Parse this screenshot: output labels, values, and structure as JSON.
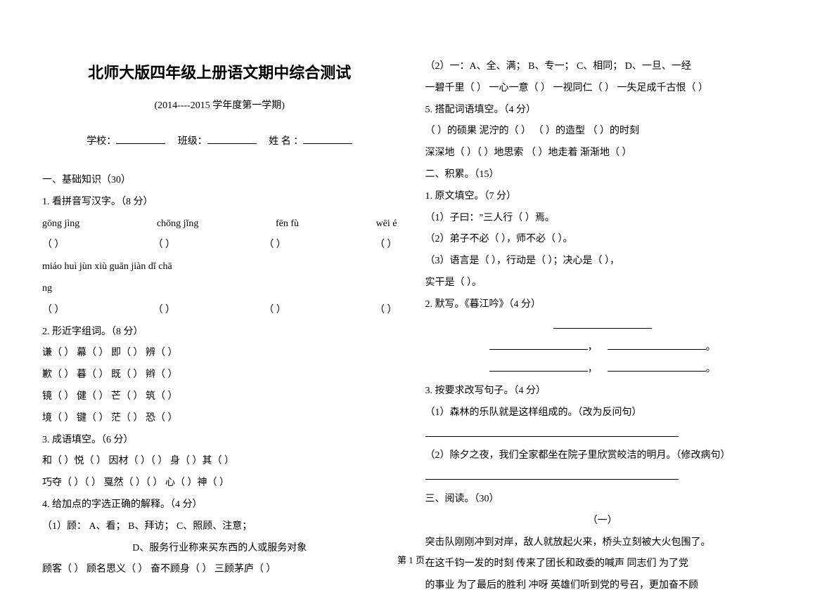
{
  "title": "北师大版四年级上册语文期中综合测试",
  "subtitle": "(2014----2015 学年度第一学期)",
  "info": {
    "school": "学校：",
    "class": "班级：",
    "name": "姓 名 ："
  },
  "left": {
    "s1": "一、基础知识（30）",
    "q1": "1. 看拼音写汉字。（8 分）",
    "pinyin1": [
      "gōng  jìng",
      "chōng   jǐng",
      "fēn    fù",
      "wēi    é"
    ],
    "paren": "（          ）",
    "pinyin2a": "  miáo   huì       jùn   xiù       guān   jiàn        dǐ   chā",
    "pinyin2b": "ng",
    "q2": "2. 形近字组词。（8 分）",
    "xing": [
      "谦（        ）      幕（        ）     即（        ）     辨（        ）",
      "歉（        ）      暮（        ）     既（        ）     辫（        ）",
      "镜（        ）      健（        ）     芒（        ）     筑（        ）",
      "境（        ）      键（        ）     茫（        ）     恐（        ）"
    ],
    "q3": "3. 成语填空。（6 分）",
    "chengyu": [
      "和（     ）悦（     ）      因材（     ）（     ）      身（     ）其（     ）",
      "巧夺（     ）（     ）      戛然（     ）（     ）      心（     ）神（     ）"
    ],
    "q4": "4. 给加点的字选正确的解释。（4 分）",
    "q4_1": "（1）顾：    A、看；      B、拜访；      C、照顾、注意；",
    "q4_1b": "D、服务行业称来买东西的人或服务对象",
    "q4_line": "顾客（    ）   顾名思义（    ）   奋不顾身（    ）   三顾茅庐（    ）"
  },
  "right": {
    "q4_2": "（2）一：A、全、满；  B、专一；  C、相同；  D、一旦、一经",
    "q4_2line": "一碧千里（  ）   一心一意（  ）   一视同仁（  ）   一失足成千古恨（  ）",
    "q5": "5. 搭配词语填空。（4 分）",
    "q5a": "（       ）的硕果    泥泞的（       ） （       ）的造型   （       ）的时刻",
    "q5b": "  深深地（     ）（         ）地思索    （       ）地走着    渐渐地（       ）",
    "s2": "二、积累。（15）",
    "p1": "1. 原文填空。（7 分）",
    "p1_1": "（1）子曰：\"三人行（                        ）焉。",
    "p1_2": "（2）弟子不必（                ），师不必（                          ）。",
    "p1_3": "（3）语言是（          ），行动是（          ）；决心是（          ），",
    "p1_3b": "实干是（            ）。",
    "p2": "2. 默写。《暮江吟》（4 分）",
    "comma": "，",
    "period": "。",
    "p3": "3. 按要求改写句子。（4 分）",
    "p3_1": "（1）森林的乐队就是这样组成的。（改为反问句）",
    "p3_2": "（2）除夕之夜，我们全家都坐在院子里欣赏皎洁的明月。（修改病句）",
    "s3": "三、阅读。（30）",
    "one": "（一）",
    "para1": "    突击队刚刚冲到对岸，敌人就放起火来，桥头立刻被大火包围了。",
    "para2": "在这千钧一发的时刻   传来了团长和政委的喊声    同志们   为了党",
    "para3": "的事业   为了最后的胜利   冲呀   英雄们听到党的号召，更加奋不顾"
  },
  "pagenum": "第 1 页"
}
